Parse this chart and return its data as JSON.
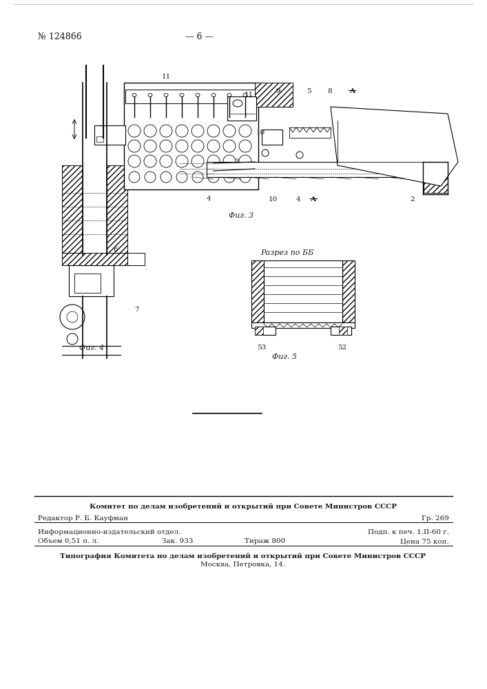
{
  "page_number": "№ 124866",
  "page_label": "— 6 —",
  "fig3_label": "Фиг. 3",
  "fig4_label": "Фиг. 4",
  "fig5_label": "Фиг. 5",
  "razrez_label": "Разрез по ББ",
  "header_line1": "Комитет по делам изобретений и открытий при Совете Министров СССР",
  "header_line2_left": "Редактор Р. Б. Кауфман",
  "header_line2_right": "Гр. 269",
  "info_line1_left": "Информационно-издательский отдел.",
  "info_line1_right": "Подп. к печ. 1.II-60 г.",
  "info_line2_col1": "Объем 0,51 п. л.",
  "info_line2_col2": "Зак. 933",
  "info_line2_col3": "Тираж 800",
  "info_line2_col4": "Цена 75 коп.",
  "footer_line1": "Типография Комитета по делам изобретений и открытий при Совете Министров СССР",
  "footer_line2": "Москва, Петровка, 14.",
  "bg_color": "#ffffff",
  "text_color": "#1a1a1a",
  "line_color": "#1a1a1a"
}
